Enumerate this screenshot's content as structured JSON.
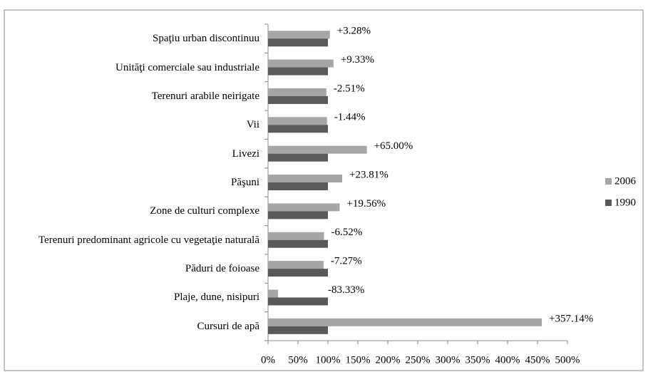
{
  "chart_data": {
    "type": "hbar",
    "categories": [
      "Spaţiu urban discontinuu",
      "Unităţi comerciale sau industriale",
      "Terenuri arabile neirigate",
      "Vii",
      "Livezi",
      "Păşuni",
      "Zone de culturi complexe",
      "Terenuri predominant agricole cu vegetaţie naturală",
      "Păduri de foioase",
      "Plaje, dune, nisipuri",
      "Cursuri de apă"
    ],
    "series": [
      {
        "name": "2006",
        "color": "#a6a6a6",
        "values": [
          103.28,
          109.33,
          97.49,
          98.56,
          165,
          123.81,
          119.56,
          93.48,
          92.73,
          16.67,
          457.14
        ]
      },
      {
        "name": "1990",
        "color": "#595959",
        "values": [
          100,
          100,
          100,
          100,
          100,
          100,
          100,
          100,
          100,
          100,
          100
        ]
      }
    ],
    "annotations": [
      "+3.28%",
      "+9.33%",
      "-2.51%",
      "-1.44%",
      "+65.00%",
      "+23.81%",
      "+19.56%",
      "-6.52%",
      "-7.27%",
      "-83.33%",
      "+357.14%"
    ],
    "xlim": [
      0,
      500
    ],
    "xticks": [
      {
        "value": 0,
        "label": "0%"
      },
      {
        "value": 50,
        "label": "50%"
      },
      {
        "value": 100,
        "label": "100%"
      },
      {
        "value": 150,
        "label": "150%"
      },
      {
        "value": 200,
        "label": "200%"
      },
      {
        "value": 250,
        "label": "250%"
      },
      {
        "value": 300,
        "label": "300%"
      },
      {
        "value": 350,
        "label": "350%"
      },
      {
        "value": 400,
        "label": "400%"
      },
      {
        "value": 450,
        "label": "450%"
      },
      {
        "value": 500,
        "label": "500%"
      }
    ],
    "grid": false,
    "legend": "right"
  }
}
